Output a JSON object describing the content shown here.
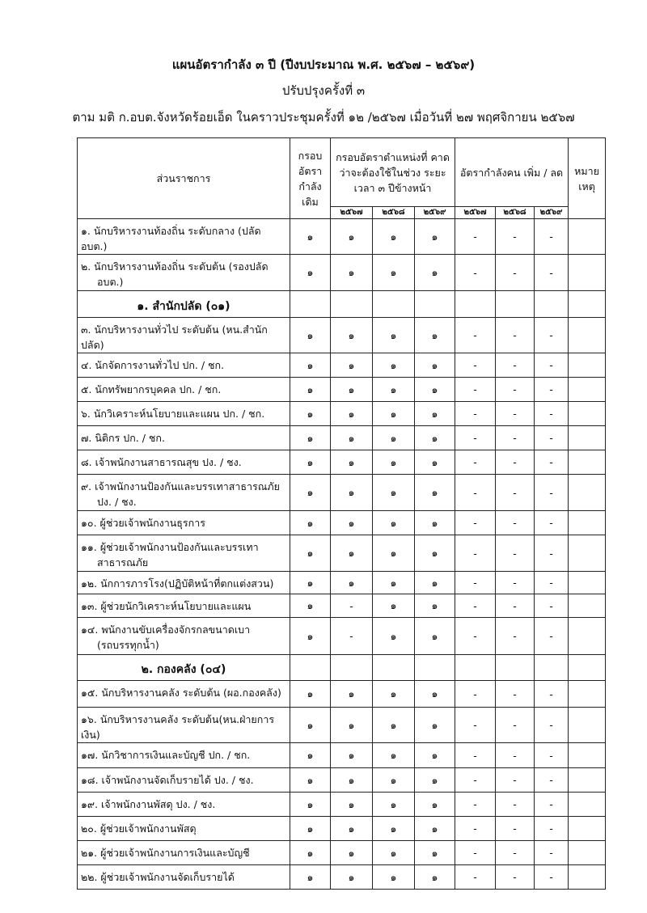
{
  "header": {
    "title": "แผนอัตรากำลัง ๓ ปี (ปีงบประมาณ พ.ศ. ๒๕๖๗ – ๒๕๖๙)",
    "subtitle": "ปรับปรุงครั้งที่ ๓",
    "resolution": "ตาม มติ ก.อบต.จังหวัดร้อยเอ็ด ในคราวประชุมครั้งที่ ๑๒ /๒๕๖๗  เมื่อวันที่ ๒๗  พฤศจิกายน ๒๕๖๗"
  },
  "columns": {
    "division": "ส่วนราชการ",
    "existing": "กรอบ อัตรา กำลัง เดิม",
    "expected": "กรอบอัตราตำแหน่งที่ คาดว่าจะต้องใช้ในช่วง ระยะเวลา ๓ ปีข้างหน้า",
    "change": "อัตรากำลังคน เพิ่ม / ลด",
    "remark": "หมาย เหตุ",
    "years": [
      "๒๕๖๗",
      "๒๕๖๘",
      "๒๕๖๙"
    ]
  },
  "rows": [
    {
      "type": "item",
      "name": "๑. นักบริหารงานท้องถิ่น ระดับกลาง (ปลัด อบต.)",
      "v": [
        "๑",
        "๑",
        "๑",
        "๑",
        "-",
        "-",
        "-"
      ]
    },
    {
      "type": "item",
      "name": "๒. นักบริหารงานท้องถิ่น ระดับต้น (รองปลัด",
      "name2": "อบต.)",
      "v": [
        "๑",
        "๑",
        "๑",
        "๑",
        "-",
        "-",
        "-"
      ]
    },
    {
      "type": "section",
      "name": "๑. สำนักปลัด (๐๑)"
    },
    {
      "type": "item",
      "name": "๓. นักบริหารงานทั่วไป ระดับต้น (หน.สำนักปลัด)",
      "v": [
        "๑",
        "๑",
        "๑",
        "๑",
        "-",
        "-",
        "-"
      ]
    },
    {
      "type": "item",
      "name": "๔. นักจัดการงานทั่วไป  ปก. / ชก.",
      "v": [
        "๑",
        "๑",
        "๑",
        "๑",
        "-",
        "-",
        "-"
      ]
    },
    {
      "type": "item",
      "name": "๕. นักทรัพยากรบุคคล  ปก. / ชก.",
      "v": [
        "๑",
        "๑",
        "๑",
        "๑",
        "-",
        "-",
        "-"
      ]
    },
    {
      "type": "item",
      "name": "๖. นักวิเคราะห์นโยบายและแผน  ปก. / ชก.",
      "v": [
        "๑",
        "๑",
        "๑",
        "๑",
        "-",
        "-",
        "-"
      ]
    },
    {
      "type": "item",
      "name": "๗. นิติกร  ปก. / ชก.",
      "v": [
        "๑",
        "๑",
        "๑",
        "๑",
        "-",
        "-",
        "-"
      ]
    },
    {
      "type": "item",
      "name": "๘. เจ้าพนักงานสาธารณสุข  ปง. / ชง.",
      "v": [
        "๑",
        "๑",
        "๑",
        "๑",
        "-",
        "-",
        "-"
      ]
    },
    {
      "type": "item",
      "name": "๙. เจ้าพนักงานป้องกันและบรรเทาสาธารณภัย",
      "name2": "ปง. / ชง.",
      "v": [
        "๑",
        "๑",
        "๑",
        "๑",
        "-",
        "-",
        "-"
      ]
    },
    {
      "type": "item",
      "name": "๑๐. ผู้ช่วยเจ้าพนักงานธุรการ",
      "v": [
        "๑",
        "๑",
        "๑",
        "๑",
        "-",
        "-",
        "-"
      ]
    },
    {
      "type": "item",
      "name": "๑๑. ผู้ช่วยเจ้าพนักงานป้องกันและบรรเทา",
      "name2": "สาธารณภัย",
      "v": [
        "๑",
        "๑",
        "๑",
        "๑",
        "-",
        "-",
        "-"
      ]
    },
    {
      "type": "item",
      "name": "๑๒. นักการภารโรง(ปฏิบัติหน้าที่ตกแต่งสวน)",
      "v": [
        "๑",
        "๑",
        "๑",
        "๑",
        "-",
        "-",
        "-"
      ]
    },
    {
      "type": "item",
      "name": "๑๓. ผู้ช่วยนักวิเคราะห์นโยบายและแผน",
      "v": [
        "๑",
        "-",
        "๑",
        "๑",
        "-",
        "-",
        "-"
      ]
    },
    {
      "type": "item",
      "name": "๑๔. พนักงานขับเครื่องจักรกลขนาดเบา",
      "name2": "(รถบรรทุกน้ำ)",
      "v": [
        "๑",
        "-",
        "๑",
        "๑",
        "-",
        "-",
        "-"
      ]
    },
    {
      "type": "section",
      "name": "๒. กองคลัง (๐๔)"
    },
    {
      "type": "item",
      "name": "๑๕. นักบริหารงานคลัง ระดับต้น (ผอ.กองคลัง)",
      "v": [
        "๑",
        "๑",
        "๑",
        "๑",
        "-",
        "-",
        "-"
      ]
    },
    {
      "type": "item",
      "name": "๑๖. นักบริหารงานคลัง ระดับต้น(หน.ฝ่ายการเงิน)",
      "v": [
        "๑",
        "๑",
        "๑",
        "๑",
        "-",
        "-",
        "-"
      ]
    },
    {
      "type": "item",
      "name": "๑๗. นักวิชาการเงินและบัญชี ปก. / ชก.",
      "v": [
        "๑",
        "๑",
        "๑",
        "๑",
        "-",
        "-",
        "-"
      ]
    },
    {
      "type": "item",
      "name": "๑๘. เจ้าพนักงานจัดเก็บรายได้ ปง. / ชง.",
      "v": [
        "๑",
        "๑",
        "๑",
        "๑",
        "-",
        "-",
        "-"
      ]
    },
    {
      "type": "item",
      "name": "๑๙. เจ้าพนักงานพัสดุ ปง. / ชง.",
      "v": [
        "๑",
        "๑",
        "๑",
        "๑",
        "-",
        "-",
        "-"
      ]
    },
    {
      "type": "item",
      "name": "๒๐. ผู้ช่วยเจ้าพนักงานพัสดุ",
      "v": [
        "๑",
        "๑",
        "๑",
        "๑",
        "-",
        "-",
        "-"
      ]
    },
    {
      "type": "item",
      "name": "๒๑. ผู้ช่วยเจ้าพนักงานการเงินและบัญชี",
      "v": [
        "๑",
        "๑",
        "๑",
        "๑",
        "-",
        "-",
        "-"
      ]
    },
    {
      "type": "item",
      "name": "๒๒. ผู้ช่วยเจ้าพนักงานจัดเก็บรายได้",
      "v": [
        "๑",
        "๑",
        "๑",
        "๑",
        "-",
        "-",
        "-"
      ]
    }
  ]
}
